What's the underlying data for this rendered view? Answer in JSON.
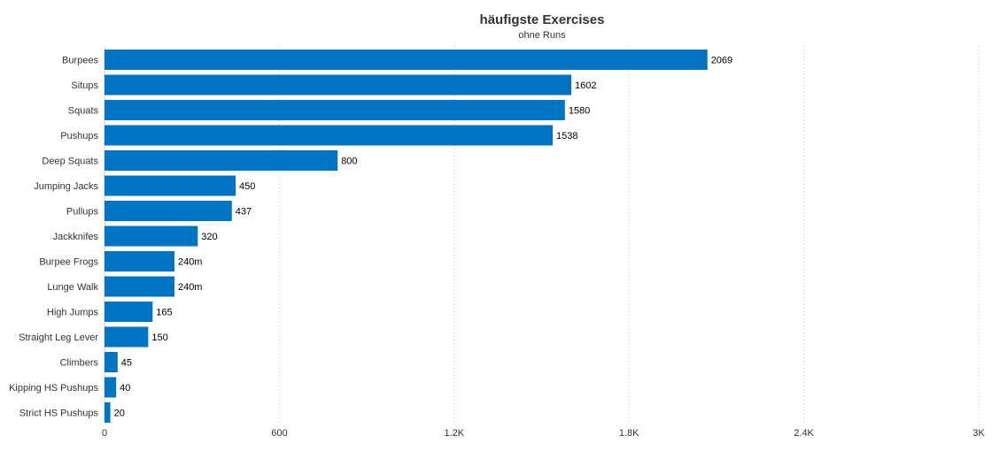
{
  "chart_data": {
    "type": "bar",
    "orientation": "horizontal",
    "title": "häufigste Exercises",
    "subtitle": "ohne Runs",
    "categories": [
      "Burpees",
      "Situps",
      "Squats",
      "Pushups",
      "Deep Squats",
      "Jumping Jacks",
      "Pullups",
      "Jackknifes",
      "Burpee Frogs",
      "Lunge Walk",
      "High Jumps",
      "Straight Leg Lever",
      "Climbers",
      "Kipping HS Pushups",
      "Strict HS Pushups"
    ],
    "values": [
      2069,
      1602,
      1580,
      1538,
      800,
      450,
      437,
      320,
      240,
      240,
      165,
      150,
      45,
      40,
      20
    ],
    "data_labels": [
      "2069",
      "1602",
      "1580",
      "1538",
      "800",
      "450",
      "437",
      "320",
      "240m",
      "240m",
      "165",
      "150",
      "45",
      "40",
      "20"
    ],
    "xlim": [
      0,
      3000
    ],
    "ticks": [
      0,
      600,
      1200,
      1800,
      2400,
      3000
    ],
    "tick_labels": [
      "0",
      "600",
      "1.2K",
      "1.8K",
      "2.4K",
      "3K"
    ],
    "grid": "vertical dotted",
    "bar_color": "#0074C2",
    "xlabel": "",
    "ylabel": ""
  }
}
